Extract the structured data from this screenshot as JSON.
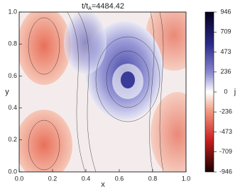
{
  "chart_data": {
    "type": "image",
    "title": {
      "text": "t/t",
      "sub": "A",
      "rest": "=4484.42"
    },
    "xlabel": "x",
    "ylabel": "y",
    "colorbar_label": "j",
    "xlim": [
      0,
      1
    ],
    "ylim": [
      0,
      1
    ],
    "xticks": [
      {
        "value": 0,
        "label": "0.0"
      },
      0.2,
      0.4,
      0.6,
      0.8,
      {
        "value": 1,
        "label": "1.0"
      }
    ],
    "yticks": [
      {
        "value": 0,
        "label": "0.0"
      },
      0.2,
      0.4,
      0.6,
      0.8,
      {
        "value": 1,
        "label": "1.0"
      }
    ],
    "clim": [
      -946,
      946
    ],
    "cticks": [
      -946,
      -709,
      -473,
      -236,
      0,
      236,
      473,
      709,
      946
    ]
  }
}
